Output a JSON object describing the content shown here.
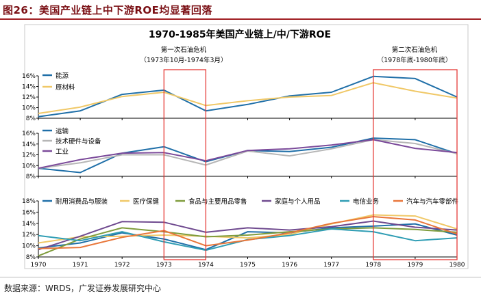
{
  "figure_title": "图26：美国产业链上中下游ROE均显著回落",
  "source": "数据来源：WRDS，广发证券发展研究中心",
  "colors": {
    "title_dark_red": "#7a0f14",
    "crisis_box": "#e53935",
    "energy": "#1f6fa8",
    "raw_materials": "#f0c867",
    "transport": "#1f6fa8",
    "tech_hardware": "#b6b6b6",
    "industrials": "#7b4a9a",
    "durables": "#1f6fa8",
    "healthcare": "#f0c867",
    "food_staples": "#7f9c3c",
    "household": "#6f4a8f",
    "telecom": "#2f9db4",
    "autos": "#e8763a"
  },
  "chart_data": {
    "type": "line",
    "title": "1970-1985年美国产业链上/中/下游ROE",
    "categories": [
      "1970",
      "1971",
      "1972",
      "1973",
      "1974",
      "1975",
      "1976",
      "1977",
      "1978",
      "1979",
      "1980"
    ],
    "annotations": [
      {
        "label": "第一次石油危机",
        "period": "（1973年10月-1974年3月）",
        "from": "1973",
        "to": "1974"
      },
      {
        "label": "第二次石油危机",
        "period": "（1978年底-1980年底）",
        "from": "1978",
        "to": "1980"
      }
    ],
    "panels": [
      {
        "name": "upstream",
        "ylim": [
          8,
          16
        ],
        "yticks": [
          "8%",
          "10%",
          "12%",
          "14%",
          "16%"
        ],
        "series": [
          {
            "name": "能源",
            "color_key": "energy",
            "values": [
              8.3,
              9.4,
              12.5,
              13.3,
              9.4,
              10.6,
              12.2,
              12.9,
              15.9,
              15.5,
              12.0
            ]
          },
          {
            "name": "原材料",
            "color_key": "raw_materials",
            "values": [
              8.9,
              10.1,
              12.1,
              12.9,
              10.4,
              11.3,
              12.0,
              12.3,
              14.7,
              13.1,
              11.8
            ]
          }
        ]
      },
      {
        "name": "midstream",
        "ylim": [
          8,
          16
        ],
        "yticks": [
          "8%",
          "10%",
          "12%",
          "14%",
          "16%"
        ],
        "series": [
          {
            "name": "运输",
            "color_key": "transport",
            "values": [
              9.5,
              8.7,
              12.3,
              13.5,
              10.7,
              12.8,
              12.6,
              13.4,
              15.1,
              14.8,
              12.2
            ]
          },
          {
            "name": "技术硬件与设备",
            "color_key": "tech_hardware",
            "values": [
              9.5,
              10.5,
              12.0,
              12.0,
              10.1,
              12.7,
              11.8,
              13.1,
              14.8,
              14.1,
              12.2
            ]
          },
          {
            "name": "工业",
            "color_key": "industrials",
            "values": [
              9.5,
              11.1,
              12.3,
              12.4,
              10.9,
              12.8,
              13.1,
              13.8,
              14.8,
              13.2,
              12.4
            ]
          }
        ]
      },
      {
        "name": "downstream",
        "ylim": [
          8,
          18
        ],
        "yticks": [
          "8%",
          "10%",
          "12%",
          "14%",
          "16%",
          "18%"
        ],
        "series": [
          {
            "name": "耐用消费品与服装",
            "color_key": "durables",
            "values": [
              9.6,
              10.5,
              12.3,
              11.2,
              9.3,
              12.5,
              12.3,
              13.2,
              13.5,
              13.9,
              11.9
            ]
          },
          {
            "name": "医疗保健",
            "color_key": "healthcare",
            "values": [
              10.5,
              11.6,
              11.7,
              11.9,
              11.7,
              11.4,
              12.0,
              13.9,
              15.5,
              15.3,
              13.0
            ]
          },
          {
            "name": "食品与主要用品零售",
            "color_key": "food_staples",
            "values": [
              8.2,
              11.2,
              13.2,
              12.5,
              11.6,
              11.9,
              12.5,
              13.0,
              13.2,
              12.9,
              12.4
            ]
          },
          {
            "name": "家庭与个人用品",
            "color_key": "household",
            "values": [
              9.3,
              11.7,
              14.3,
              14.2,
              12.4,
              13.2,
              12.8,
              13.4,
              14.4,
              13.3,
              12.8
            ]
          },
          {
            "name": "电信业务",
            "color_key": "telecom",
            "values": [
              11.8,
              10.9,
              12.5,
              10.7,
              9.2,
              11.1,
              11.8,
              13.0,
              12.5,
              10.9,
              11.4
            ]
          },
          {
            "name": "汽车与汽车零部件",
            "color_key": "autos",
            "values": [
              9.5,
              9.7,
              11.5,
              12.7,
              10.0,
              11.0,
              12.3,
              14.0,
              15.2,
              14.6,
              12.1
            ]
          }
        ]
      }
    ]
  }
}
